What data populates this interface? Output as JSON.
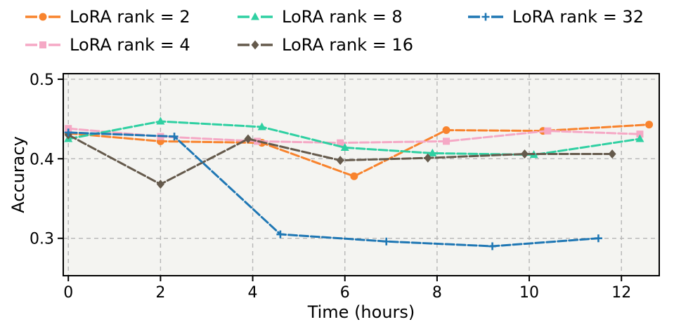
{
  "chart_data": {
    "type": "line",
    "title": "",
    "xlabel": "Time (hours)",
    "ylabel": "Accuracy",
    "xlim": [
      -0.11,
      12.82
    ],
    "ylim": [
      0.253,
      0.507
    ],
    "xticks": [
      0,
      2,
      4,
      6,
      8,
      10,
      12
    ],
    "yticks": [
      0.3,
      0.4,
      0.5
    ],
    "grid": true,
    "grid_style": "dashed",
    "legend_position": "top",
    "legend_columns": 3,
    "line_style": "dashed",
    "line_width": 3,
    "colors": {
      "figure_bg": "#ffffff",
      "plot_bg": "#f4f4f1",
      "grid": "#b6b6b6",
      "axis": "#000000"
    },
    "series": [
      {
        "name": "LoRA rank = 2",
        "color": "#f8832d",
        "marker": "circle",
        "x": [
          0,
          2.0,
          4.2,
          6.2,
          8.2,
          10.3,
          12.6
        ],
        "y": [
          0.432,
          0.422,
          0.42,
          0.378,
          0.436,
          0.435,
          0.443
        ]
      },
      {
        "name": "LoRA rank = 4",
        "color": "#f5a8c5",
        "marker": "square",
        "x": [
          0,
          2.0,
          4.1,
          5.9,
          8.2,
          10.4,
          12.4
        ],
        "y": [
          0.438,
          0.428,
          0.422,
          0.42,
          0.422,
          0.435,
          0.431
        ]
      },
      {
        "name": "LoRA rank = 8",
        "color": "#2fd0a2",
        "marker": "triangle",
        "x": [
          0,
          2.0,
          4.2,
          6.0,
          7.9,
          10.1,
          12.4
        ],
        "y": [
          0.425,
          0.447,
          0.44,
          0.414,
          0.407,
          0.405,
          0.425
        ]
      },
      {
        "name": "LoRA rank = 16",
        "color": "#655a4c",
        "marker": "diamond",
        "x": [
          0,
          2.0,
          3.9,
          5.9,
          7.8,
          9.9,
          11.8
        ],
        "y": [
          0.43,
          0.368,
          0.425,
          0.398,
          0.401,
          0.406,
          0.406
        ]
      },
      {
        "name": "LoRA rank = 32",
        "color": "#1f77b4",
        "marker": "plus",
        "x": [
          0,
          2.3,
          4.6,
          6.9,
          9.2,
          11.5
        ],
        "y": [
          0.433,
          0.428,
          0.305,
          0.296,
          0.29,
          0.3
        ]
      }
    ]
  }
}
